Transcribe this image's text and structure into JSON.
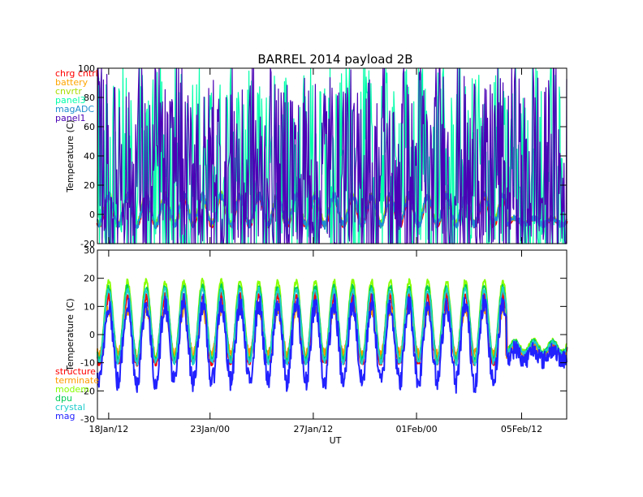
{
  "chart_data": {
    "type": "line",
    "title": "BARREL 2014 payload 2B",
    "xlabel": "UT",
    "x_ticks": [
      "18Jan/12",
      "23Jan/00",
      "27Jan/12",
      "01Feb/00",
      "05Feb/12"
    ],
    "x_range_days": [
      0,
      25
    ],
    "panels": [
      {
        "ylabel": "Temperature (C)",
        "ylim": [
          -20,
          100
        ],
        "y_ticks": [
          -20,
          0,
          20,
          40,
          60,
          80,
          100
        ],
        "legend_position": "top-left",
        "series": [
          {
            "name": "chrg cntrl",
            "color": "#ff0000",
            "center": 2,
            "amp": 10,
            "noise": 1,
            "mode": "line"
          },
          {
            "name": "battery",
            "color": "#ffa500",
            "center": 3,
            "amp": 9,
            "noise": 1,
            "mode": "line"
          },
          {
            "name": "cnvrtr",
            "color": "#aadd00",
            "center": 4,
            "amp": 10,
            "noise": 2,
            "mode": "line"
          },
          {
            "name": "panel3",
            "color": "#00ffaa",
            "center": 25,
            "amp": 45,
            "noise": 30,
            "mode": "spiky"
          },
          {
            "name": "magADC",
            "color": "#1f8fcf",
            "center": 3,
            "amp": 10,
            "noise": 3,
            "mode": "line"
          },
          {
            "name": "panel1",
            "color": "#4b00b5",
            "center": 25,
            "amp": 45,
            "noise": 30,
            "mode": "spiky"
          }
        ]
      },
      {
        "ylabel": "Temperature (C)",
        "ylim": [
          -30,
          30
        ],
        "y_ticks": [
          -30,
          -20,
          -10,
          0,
          10,
          20,
          30
        ],
        "legend_position": "bottom-left",
        "series": [
          {
            "name": "structure",
            "color": "#ff0000",
            "center": 2,
            "amp": 12,
            "noise": 1,
            "mode": "line"
          },
          {
            "name": "terminate",
            "color": "#ff9900",
            "center": 1,
            "amp": 8,
            "noise": 2,
            "mode": "line"
          },
          {
            "name": "modem",
            "color": "#88ff00",
            "center": 5,
            "amp": 14,
            "noise": 1,
            "mode": "line"
          },
          {
            "name": "dpu",
            "color": "#00cc55",
            "center": 4,
            "amp": 13,
            "noise": 1,
            "mode": "line"
          },
          {
            "name": "crystal",
            "color": "#22cccc",
            "center": 3,
            "amp": 13,
            "noise": 1,
            "mode": "line"
          },
          {
            "name": "mag",
            "color": "#2222ff",
            "center": -3,
            "amp": 14,
            "noise": 4,
            "mode": "line"
          }
        ]
      }
    ]
  }
}
